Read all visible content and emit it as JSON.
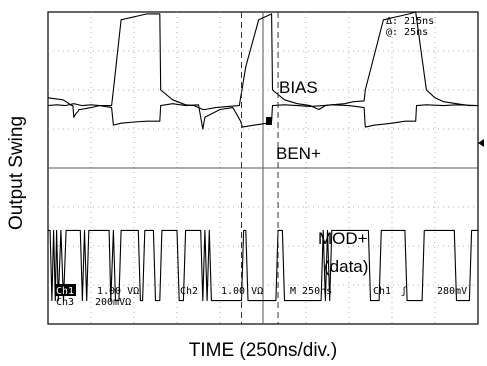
{
  "chart_data": {
    "type": "line",
    "title": "",
    "xlabel": "TIME (250ns/div.)",
    "ylabel": "Output Swing",
    "grid": true,
    "x_divisions": 10,
    "y_divisions": 8,
    "x_unit": "ns",
    "x_per_div": 250,
    "cursor_readout": {
      "delta": "Δ: 215ns",
      "at": "@: 25ns"
    },
    "status": {
      "ch1_tag": "Ch1",
      "ch1_scale": "1.00 VΩ",
      "ch2_tag": "Ch2",
      "ch2_scale": "1.00 VΩ",
      "timebase": "M  250ns",
      "trigger_source": "Ch1",
      "trigger_slope_symbol": "ʃ",
      "trigger_level": "280mV",
      "ch3_tag": "Ch3",
      "ch3_scale": "200mVΩ"
    },
    "series": [
      {
        "name": "BIAS",
        "color": "#000000",
        "x": [
          0,
          0.35,
          0.45,
          0.55,
          0.58,
          0.6,
          0.65,
          0.7,
          0.72,
          0.75,
          1.0,
          1.2,
          1.48,
          1.52,
          1.7,
          1.9,
          2.1,
          2.3,
          2.6,
          2.62,
          2.9,
          3.2,
          3.4,
          3.6,
          3.65,
          3.9,
          4.2,
          4.45,
          4.6,
          4.9,
          5.1,
          5.2,
          5.22,
          5.5,
          5.8,
          6.1,
          6.2,
          6.3,
          6.45,
          6.6,
          6.9,
          7.1,
          7.35,
          7.38,
          7.8,
          8.2,
          8.4,
          8.55,
          8.8,
          9.0,
          9.2,
          9.5,
          9.8,
          10.0
        ],
        "y": [
          1.8,
          1.75,
          1.68,
          1.6,
          1.6,
          1.3,
          1.4,
          1.45,
          1.5,
          1.5,
          1.55,
          1.6,
          1.6,
          2.0,
          3.8,
          3.85,
          3.9,
          3.95,
          3.95,
          2.0,
          1.75,
          1.62,
          1.6,
          1.5,
          1.5,
          1.55,
          1.58,
          1.6,
          2.6,
          3.8,
          3.9,
          3.95,
          2.0,
          1.75,
          1.65,
          1.6,
          1.55,
          1.5,
          1.6,
          1.62,
          1.65,
          1.7,
          1.72,
          2.0,
          3.8,
          3.9,
          3.95,
          4.0,
          2.0,
          1.8,
          1.7,
          1.65,
          1.6,
          1.6
        ],
        "label": "BIAS"
      },
      {
        "name": "BEN+",
        "color": "#000000",
        "x": [
          0,
          0.2,
          0.4,
          0.6,
          0.8,
          1.0,
          1.2,
          1.48,
          1.52,
          1.7,
          2.0,
          2.3,
          2.6,
          2.62,
          2.9,
          3.2,
          3.5,
          3.6,
          3.65,
          4.0,
          4.3,
          4.48,
          4.52,
          4.8,
          5.1,
          5.2,
          5.22,
          5.5,
          5.8,
          6.1,
          6.4,
          6.6,
          7.0,
          7.35,
          7.38,
          7.6,
          8.0,
          8.3,
          8.55,
          8.57,
          8.8,
          9.2,
          9.5,
          10.0
        ],
        "y": [
          1.6,
          1.62,
          1.6,
          1.65,
          1.6,
          1.62,
          1.6,
          1.55,
          1.1,
          1.15,
          1.18,
          1.2,
          1.2,
          1.6,
          1.65,
          1.6,
          1.62,
          1.0,
          1.3,
          1.5,
          1.55,
          1.2,
          1.05,
          1.1,
          1.15,
          1.2,
          1.6,
          1.62,
          1.6,
          1.58,
          1.6,
          1.62,
          1.6,
          1.55,
          1.05,
          1.1,
          1.15,
          1.2,
          1.2,
          1.6,
          1.62,
          1.6,
          1.62,
          1.6
        ],
        "label": "BEN+"
      },
      {
        "name": "MOD+ (data)",
        "color": "#000000",
        "x": [
          0.0,
          0.05,
          0.09,
          0.13,
          0.17,
          0.2,
          0.24,
          0.3,
          0.36,
          0.42,
          0.75,
          0.8,
          0.85,
          0.9,
          0.95,
          1.42,
          1.46,
          1.52,
          1.57,
          1.65,
          1.7,
          2.1,
          2.15,
          2.2,
          2.25,
          2.45,
          2.5,
          2.6,
          2.65,
          3.0,
          3.05,
          3.15,
          3.2,
          3.55,
          3.6,
          3.65,
          3.7,
          3.75,
          3.8,
          4.5,
          4.55,
          4.6,
          4.65,
          5.3,
          5.35,
          5.45,
          5.5,
          6.35,
          6.4,
          6.45,
          6.5,
          6.55,
          6.6,
          7.45,
          7.5,
          7.7,
          7.75,
          8.3,
          8.35,
          8.7,
          8.75,
          9.45,
          9.5,
          9.8,
          9.85,
          10.0
        ],
        "y": [
          -1.6,
          -1.6,
          -3.4,
          -1.6,
          -3.4,
          -1.6,
          -3.4,
          -1.6,
          -3.4,
          -1.6,
          -1.6,
          -3.4,
          -1.6,
          -3.4,
          -1.6,
          -1.6,
          -3.4,
          -1.6,
          -3.4,
          -3.4,
          -1.6,
          -1.6,
          -3.4,
          -3.4,
          -1.6,
          -1.6,
          -3.4,
          -3.4,
          -1.6,
          -1.6,
          -3.4,
          -3.4,
          -1.6,
          -1.6,
          -3.4,
          -1.6,
          -3.4,
          -1.6,
          -3.4,
          -3.4,
          -1.6,
          -1.6,
          -3.4,
          -3.4,
          -1.6,
          -1.6,
          -3.4,
          -3.4,
          -1.6,
          -3.4,
          -1.6,
          -3.4,
          -1.6,
          -1.6,
          -3.4,
          -3.4,
          -1.6,
          -1.6,
          -3.4,
          -3.4,
          -1.6,
          -1.6,
          -3.4,
          -3.4,
          -1.6,
          -1.6
        ],
        "label_line1": "MOD+",
        "label_line2": "(data)"
      }
    ],
    "xlim": [
      0,
      10
    ],
    "ylim": [
      -4,
      4
    ]
  }
}
